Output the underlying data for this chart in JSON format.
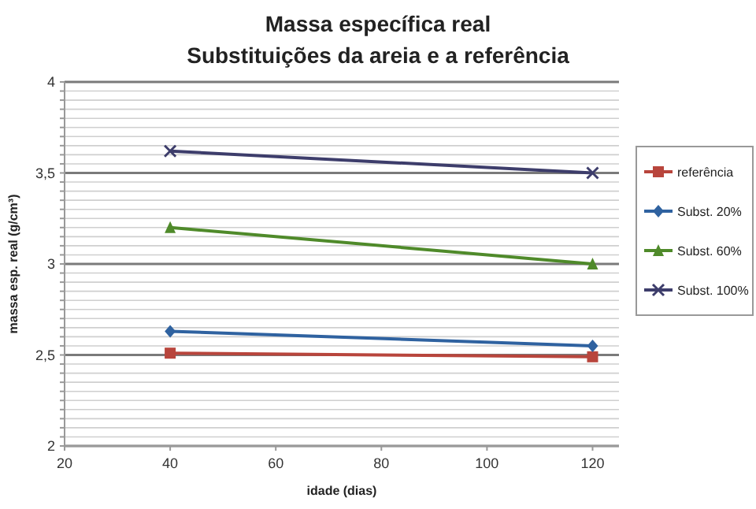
{
  "chart_data": {
    "type": "line",
    "title": "Massa específica real",
    "subtitle": "Substituições da areia e a referência",
    "xlabel": "idade (dias)",
    "ylabel": "massa esp. real (g/cm³)",
    "x": [
      40,
      120
    ],
    "xlim": [
      20,
      125
    ],
    "xticks": [
      20,
      40,
      60,
      80,
      100,
      120
    ],
    "ylim": [
      2,
      4
    ],
    "yticks": [
      {
        "value": 2,
        "label": "2"
      },
      {
        "value": 2.05,
        "label": null
      },
      {
        "value": 2.1,
        "label": null
      },
      {
        "value": 2.15,
        "label": null
      },
      {
        "value": 2.2,
        "label": null
      },
      {
        "value": 2.25,
        "label": null
      },
      {
        "value": 2.3,
        "label": null
      },
      {
        "value": 2.35,
        "label": null
      },
      {
        "value": 2.4,
        "label": null
      },
      {
        "value": 2.45,
        "label": null
      },
      {
        "value": 2.5,
        "label": "2,5"
      },
      {
        "value": 2.55,
        "label": null
      },
      {
        "value": 2.6,
        "label": null
      },
      {
        "value": 2.65,
        "label": null
      },
      {
        "value": 2.7,
        "label": null
      },
      {
        "value": 2.75,
        "label": null
      },
      {
        "value": 2.8,
        "label": null
      },
      {
        "value": 2.85,
        "label": null
      },
      {
        "value": 2.9,
        "label": null
      },
      {
        "value": 2.95,
        "label": null
      },
      {
        "value": 3,
        "label": "3"
      },
      {
        "value": 3.05,
        "label": null
      },
      {
        "value": 3.1,
        "label": null
      },
      {
        "value": 3.15,
        "label": null
      },
      {
        "value": 3.2,
        "label": null
      },
      {
        "value": 3.25,
        "label": null
      },
      {
        "value": 3.3,
        "label": null
      },
      {
        "value": 3.35,
        "label": null
      },
      {
        "value": 3.4,
        "label": null
      },
      {
        "value": 3.45,
        "label": null
      },
      {
        "value": 3.5,
        "label": "3,5"
      },
      {
        "value": 3.55,
        "label": null
      },
      {
        "value": 3.6,
        "label": null
      },
      {
        "value": 3.65,
        "label": null
      },
      {
        "value": 3.7,
        "label": null
      },
      {
        "value": 3.75,
        "label": null
      },
      {
        "value": 3.8,
        "label": null
      },
      {
        "value": 3.85,
        "label": null
      },
      {
        "value": 3.9,
        "label": null
      },
      {
        "value": 3.95,
        "label": null
      },
      {
        "value": 4,
        "label": "4"
      }
    ],
    "grid": "y",
    "legend": "right",
    "series": [
      {
        "name": "referência",
        "color": "#b8453c",
        "marker": "square",
        "values": [
          2.51,
          2.49
        ]
      },
      {
        "name": "Subst. 20%",
        "color": "#2f62a0",
        "marker": "diamond",
        "values": [
          2.63,
          2.55
        ]
      },
      {
        "name": "Subst. 60%",
        "color": "#4f8a2a",
        "marker": "triangle",
        "values": [
          3.2,
          3.0
        ]
      },
      {
        "name": "Subst. 100%",
        "color": "#3d3d6b",
        "marker": "cross",
        "values": [
          3.62,
          3.5
        ]
      }
    ]
  }
}
